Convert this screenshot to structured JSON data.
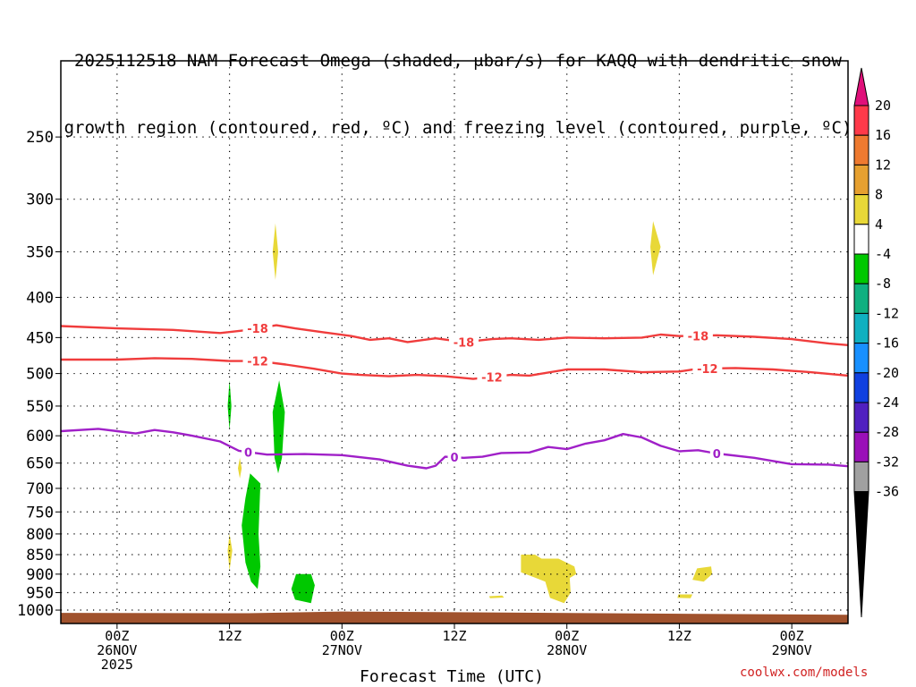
{
  "title_lines": [
    "2025112518 NAM Forecast Omega (shaded, μbar/s) for KAQQ with dendritic snow",
    "growth region (contoured, red, ºC) and freezing level (contoured, purple, ºC)"
  ],
  "watermark": "coolwx.com/models",
  "chart_data": {
    "type": "contour",
    "title": "2025112518 NAM Forecast Omega (shaded, μbar/s) for KAQQ with dendritic snow growth region (contoured, red, ºC) and freezing level (contoured, purple, ºC)",
    "xlabel": "Forecast Time (UTC)",
    "ylabel": "",
    "x_unit": "forecast hour from 2025-11-25 18Z",
    "xlim": [
      0,
      84
    ],
    "ylim": [
      1040,
      200
    ],
    "y_scale": "log pressure",
    "grid": true,
    "x_ticks": [
      {
        "x": 6,
        "lines": [
          "00Z",
          "26NOV",
          "2025"
        ]
      },
      {
        "x": 18,
        "lines": [
          "12Z"
        ]
      },
      {
        "x": 30,
        "lines": [
          "00Z",
          "27NOV"
        ]
      },
      {
        "x": 42,
        "lines": [
          "12Z"
        ]
      },
      {
        "x": 54,
        "lines": [
          "00Z",
          "28NOV"
        ]
      },
      {
        "x": 66,
        "lines": [
          "12Z"
        ]
      },
      {
        "x": 78,
        "lines": [
          "00Z",
          "29NOV"
        ]
      }
    ],
    "y_ticks": [
      250,
      300,
      350,
      400,
      450,
      500,
      550,
      600,
      650,
      700,
      750,
      800,
      850,
      900,
      950,
      1000
    ],
    "colorbar": {
      "labels": [
        "20",
        "16",
        "12",
        "8",
        "4",
        "-4",
        "-8",
        "-12",
        "-16",
        "-20",
        "-24",
        "-28",
        "-32",
        "-36"
      ],
      "colors": [
        "#ff3a4a",
        "#ee7a30",
        "#e6a030",
        "#e8d838",
        "#ffffff",
        "#00c800",
        "#10b080",
        "#10b0c0",
        "#1890ff",
        "#1040e0",
        "#5020c0",
        "#9a10b8",
        "#a0a0a0"
      ],
      "top_arrow_color": "#e0107a",
      "bottom_arrow_color": "#000000"
    },
    "contours": [
      {
        "color": "#f03c3c",
        "labels": [
          {
            "x": 21,
            "text": "-18"
          },
          {
            "x": 43,
            "text": "-18"
          },
          {
            "x": 68,
            "text": "-18"
          }
        ],
        "points": [
          [
            0,
            435
          ],
          [
            6,
            438
          ],
          [
            12,
            440
          ],
          [
            17,
            444
          ],
          [
            20,
            440
          ],
          [
            23,
            434
          ],
          [
            25,
            438
          ],
          [
            28,
            443
          ],
          [
            31,
            448
          ],
          [
            33,
            453
          ],
          [
            35,
            451
          ],
          [
            37,
            456
          ],
          [
            40,
            451
          ],
          [
            43,
            456
          ],
          [
            46,
            452
          ],
          [
            48,
            451
          ],
          [
            51,
            453
          ],
          [
            54,
            450
          ],
          [
            58,
            451
          ],
          [
            62,
            450
          ],
          [
            64,
            446
          ],
          [
            66,
            448
          ],
          [
            70,
            447
          ],
          [
            74,
            449
          ],
          [
            78,
            452
          ],
          [
            82,
            458
          ],
          [
            84,
            460
          ]
        ]
      },
      {
        "color": "#f03c3c",
        "labels": [
          {
            "x": 21,
            "text": "-12"
          },
          {
            "x": 46,
            "text": "-12"
          },
          {
            "x": 69,
            "text": "-12"
          }
        ],
        "points": [
          [
            0,
            480
          ],
          [
            6,
            480
          ],
          [
            10,
            478
          ],
          [
            14,
            479
          ],
          [
            18,
            482
          ],
          [
            21,
            482
          ],
          [
            24,
            487
          ],
          [
            27,
            493
          ],
          [
            30,
            500
          ],
          [
            32,
            502
          ],
          [
            35,
            504
          ],
          [
            38,
            502
          ],
          [
            41,
            504
          ],
          [
            44,
            508
          ],
          [
            48,
            502
          ],
          [
            50,
            503
          ],
          [
            54,
            494
          ],
          [
            58,
            494
          ],
          [
            62,
            498
          ],
          [
            66,
            497
          ],
          [
            68,
            493
          ],
          [
            72,
            492
          ],
          [
            76,
            494
          ],
          [
            80,
            498
          ],
          [
            84,
            503
          ]
        ]
      },
      {
        "color": "#a020c8",
        "labels": [
          {
            "x": 20,
            "text": "0"
          },
          {
            "x": 42,
            "text": "0"
          },
          {
            "x": 70,
            "text": "0"
          }
        ],
        "points": [
          [
            0,
            592
          ],
          [
            4,
            588
          ],
          [
            6,
            592
          ],
          [
            8,
            596
          ],
          [
            10,
            590
          ],
          [
            12,
            594
          ],
          [
            14,
            600
          ],
          [
            17,
            610
          ],
          [
            19,
            627
          ],
          [
            22,
            634
          ],
          [
            26,
            633
          ],
          [
            30,
            635
          ],
          [
            34,
            643
          ],
          [
            37,
            655
          ],
          [
            39,
            660
          ],
          [
            40,
            655
          ],
          [
            41,
            638
          ],
          [
            43,
            640
          ],
          [
            45,
            638
          ],
          [
            47,
            631
          ],
          [
            50,
            630
          ],
          [
            52,
            620
          ],
          [
            54,
            624
          ],
          [
            56,
            614
          ],
          [
            58,
            608
          ],
          [
            60,
            597
          ],
          [
            62,
            603
          ],
          [
            64,
            618
          ],
          [
            66,
            628
          ],
          [
            68,
            626
          ],
          [
            70,
            632
          ],
          [
            74,
            640
          ],
          [
            78,
            652
          ],
          [
            82,
            653
          ],
          [
            84,
            656
          ]
        ]
      }
    ],
    "shaded_regions": [
      {
        "color": "#e8d838",
        "points": [
          [
            22.9,
            322
          ],
          [
            23.2,
            350
          ],
          [
            22.9,
            380
          ],
          [
            22.6,
            350
          ]
        ]
      },
      {
        "color": "#e8d838",
        "points": [
          [
            63.2,
            320
          ],
          [
            64.0,
            345
          ],
          [
            63.2,
            375
          ],
          [
            62.9,
            345
          ]
        ]
      },
      {
        "color": "#00c800",
        "points": [
          [
            18.0,
            510
          ],
          [
            18.2,
            550
          ],
          [
            18.0,
            590
          ],
          [
            17.8,
            550
          ]
        ]
      },
      {
        "color": "#e8d838",
        "points": [
          [
            19.1,
            640
          ],
          [
            19.3,
            660
          ],
          [
            19.1,
            680
          ],
          [
            18.9,
            660
          ]
        ]
      },
      {
        "color": "#00c800",
        "points": [
          [
            23.3,
            510
          ],
          [
            23.9,
            560
          ],
          [
            23.6,
            640
          ],
          [
            23.2,
            670
          ],
          [
            22.8,
            640
          ],
          [
            22.6,
            560
          ]
        ]
      },
      {
        "color": "#00c800",
        "points": [
          [
            20.2,
            670
          ],
          [
            21.3,
            690
          ],
          [
            21.1,
            800
          ],
          [
            21.3,
            880
          ],
          [
            21.0,
            940
          ],
          [
            20.3,
            920
          ],
          [
            19.7,
            870
          ],
          [
            19.3,
            780
          ],
          [
            19.7,
            720
          ]
        ]
      },
      {
        "color": "#e8d838",
        "points": [
          [
            18.0,
            800
          ],
          [
            18.3,
            840
          ],
          [
            18.0,
            890
          ],
          [
            17.8,
            840
          ]
        ]
      },
      {
        "color": "#00c800",
        "points": [
          [
            25.1,
            900
          ],
          [
            26.7,
            900
          ],
          [
            27.1,
            930
          ],
          [
            26.7,
            980
          ],
          [
            25.0,
            970
          ],
          [
            24.6,
            940
          ]
        ]
      },
      {
        "color": "#e8d838",
        "points": [
          [
            49.1,
            850
          ],
          [
            50.6,
            850
          ],
          [
            51.3,
            860
          ],
          [
            53.1,
            860
          ],
          [
            54.8,
            880
          ],
          [
            55.0,
            900
          ],
          [
            54.3,
            910
          ],
          [
            54.4,
            950
          ],
          [
            53.7,
            980
          ],
          [
            52.2,
            965
          ],
          [
            51.7,
            920
          ],
          [
            50.7,
            910
          ],
          [
            49.1,
            895
          ]
        ]
      },
      {
        "color": "#e8d838",
        "points": [
          [
            45.7,
            960
          ],
          [
            47.1,
            958
          ],
          [
            47.3,
            964
          ],
          [
            45.8,
            966
          ]
        ]
      },
      {
        "color": "#e8d838",
        "points": [
          [
            67.9,
            885
          ],
          [
            69.4,
            880
          ],
          [
            69.5,
            900
          ],
          [
            68.6,
            920
          ],
          [
            67.4,
            915
          ]
        ]
      },
      {
        "color": "#e8d838",
        "points": [
          [
            65.9,
            955
          ],
          [
            67.4,
            955
          ],
          [
            67.2,
            966
          ],
          [
            65.8,
            965
          ]
        ]
      }
    ],
    "terrain": {
      "color": "#a0522d",
      "points": [
        [
          0,
          1008
        ],
        [
          20,
          1009
        ],
        [
          30,
          1004
        ],
        [
          84,
          1014
        ]
      ]
    }
  }
}
